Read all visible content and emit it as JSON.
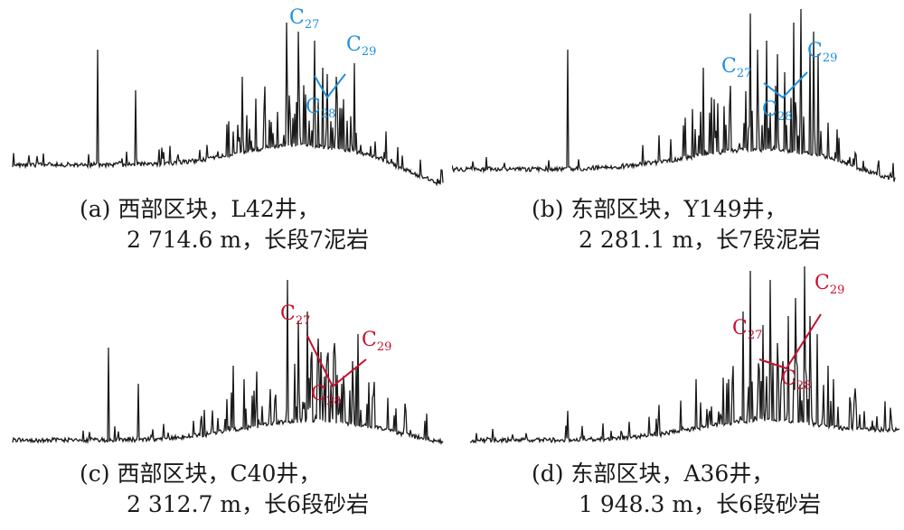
{
  "chart_data": [
    {
      "type": "line",
      "caption_line1": "(a) 西部区块，L42井，",
      "caption_line2": "2 714.6 m，长段7泥岩",
      "annotation_color": "#1f8fdc",
      "peaks": [
        {
          "label": "C",
          "sub": "27"
        },
        {
          "label": "C",
          "sub": "28"
        },
        {
          "label": "C",
          "sub": "29"
        }
      ],
      "seed": 11
    },
    {
      "type": "line",
      "caption_line1": "(b) 东部区块，Y149井，",
      "caption_line2": "2 281.1 m，长7段泥岩",
      "annotation_color": "#1f8fdc",
      "peaks": [
        {
          "label": "C",
          "sub": "27"
        },
        {
          "label": "C",
          "sub": "28"
        },
        {
          "label": "C",
          "sub": "29"
        }
      ],
      "seed": 23
    },
    {
      "type": "line",
      "caption_line1": "(c) 西部区块，C40井，",
      "caption_line2": "2 312.7 m，长6段砂岩",
      "annotation_color": "#c8102e",
      "peaks": [
        {
          "label": "C",
          "sub": "27"
        },
        {
          "label": "C",
          "sub": "28"
        },
        {
          "label": "C",
          "sub": "29"
        }
      ],
      "seed": 37
    },
    {
      "type": "line",
      "caption_line1": "(d) 东部区块，A36井，",
      "caption_line2": "1 948.3 m，长6段砂岩",
      "annotation_color": "#c8102e",
      "peaks": [
        {
          "label": "C",
          "sub": "27"
        },
        {
          "label": "C",
          "sub": "28"
        },
        {
          "label": "C",
          "sub": "29"
        }
      ],
      "seed": 53
    }
  ]
}
